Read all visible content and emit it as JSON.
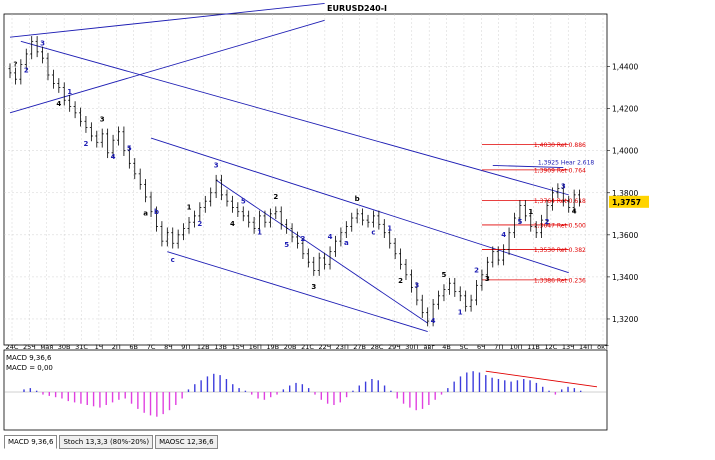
{
  "window": {
    "title": "EURUSD240-I"
  },
  "colors": {
    "wave": "#1e1eb4",
    "candle": "#000000",
    "fib": "#e00000",
    "macd_pos": "#3c3cdc",
    "macd_neg": "#e040e0",
    "grid": "#c8c8c8",
    "price_box": "#ffd400"
  },
  "chart_data": [
    {
      "type": "candlestick",
      "title": "EURUSD240-I",
      "ylim": [
        1.31,
        1.465
      ],
      "y_ticks": [
        "1,4400",
        "1,4200",
        "1,4000",
        "1,3800",
        "1,3600",
        "1,3400",
        "1,3200"
      ],
      "y_tick_values": [
        1.44,
        1.42,
        1.4,
        1.38,
        1.36,
        1.34,
        1.32
      ],
      "current_price": "1,3757",
      "current_price_value": 1.3757,
      "x_ticks": [
        "24С",
        "25Ч",
        "мая",
        "30В",
        "31С",
        "1Ч",
        "2П",
        "6В",
        "7С",
        "8Ч",
        "9П",
        "12В",
        "13В",
        "15Ч",
        "16П",
        "19В",
        "20В",
        "21С",
        "22Ч",
        "23П",
        "27В",
        "28С",
        "29Ч",
        "30П",
        "авг",
        "4В",
        "5С",
        "6Ч",
        "7П",
        "10П",
        "11В",
        "12С",
        "13Ч",
        "14П",
        "окт"
      ],
      "fib_levels": [
        {
          "label": "1,4030 Ret 0.886",
          "value": 1.403
        },
        {
          "label": "1,3909 Ret 0.764",
          "value": 1.3909
        },
        {
          "label": "1,3764 Ret 0.618",
          "value": 1.3764
        },
        {
          "label": "1,3647 Ret 0.500",
          "value": 1.3647
        },
        {
          "label": "1,3530 Ret 0.382",
          "value": 1.353
        },
        {
          "label": "1,3386 Ret 0.236",
          "value": 1.3386
        }
      ],
      "extension": {
        "label": "1,3925 Hear 2.618",
        "value": 1.3925
      },
      "closes": [
        1.437,
        1.434,
        1.441,
        1.446,
        1.452,
        1.447,
        1.444,
        1.436,
        1.432,
        1.43,
        1.424,
        1.421,
        1.418,
        1.414,
        1.411,
        1.407,
        1.404,
        1.408,
        1.399,
        1.405,
        1.409,
        1.4,
        1.394,
        1.389,
        1.384,
        1.378,
        1.371,
        1.364,
        1.357,
        1.361,
        1.356,
        1.36,
        1.363,
        1.366,
        1.369,
        1.373,
        1.376,
        1.38,
        1.386,
        1.379,
        1.376,
        1.373,
        1.371,
        1.369,
        1.366,
        1.363,
        1.369,
        1.366,
        1.37,
        1.371,
        1.365,
        1.363,
        1.359,
        1.356,
        1.351,
        1.347,
        1.343,
        1.349,
        1.346,
        1.352,
        1.357,
        1.361,
        1.364,
        1.368,
        1.37,
        1.367,
        1.366,
        1.369,
        1.365,
        1.361,
        1.356,
        1.351,
        1.346,
        1.341,
        1.335,
        1.329,
        1.323,
        1.319,
        1.327,
        1.331,
        1.334,
        1.337,
        1.333,
        1.331,
        1.326,
        1.329,
        1.336,
        1.341,
        1.347,
        1.352,
        1.348,
        1.353,
        1.361,
        1.368,
        1.374,
        1.369,
        1.364,
        1.361,
        1.367,
        1.374,
        1.38,
        1.382,
        1.376,
        1.373,
        1.379,
        1.376
      ],
      "wave_labels": [
        "?",
        "2",
        "3",
        "4",
        "1",
        "2",
        "3",
        "4",
        "5",
        "a",
        "b",
        "c",
        "1",
        "2",
        "3",
        "4",
        "5",
        "1",
        "2",
        "5",
        "2",
        "3",
        "4",
        "a",
        "b",
        "c",
        "1",
        "2",
        "3",
        "4",
        "5",
        "1",
        "2",
        "3",
        "4",
        "5",
        "1",
        "2",
        "3",
        "4"
      ]
    },
    {
      "type": "histogram",
      "title": "MACD 9,36,6",
      "legend": [
        "MACD 9,36,6",
        "MACD = 0,00"
      ],
      "values": [
        0.2,
        0.3,
        0.1,
        -0.2,
        -0.3,
        -0.4,
        -0.5,
        -0.7,
        -0.8,
        -0.9,
        -1.0,
        -1.1,
        -1.2,
        -1.0,
        -0.8,
        -0.6,
        -0.5,
        -0.9,
        -1.3,
        -1.6,
        -1.8,
        -1.9,
        -1.7,
        -1.4,
        -1.0,
        -0.5,
        0.2,
        0.6,
        0.9,
        1.2,
        1.4,
        1.3,
        1.0,
        0.6,
        0.3,
        0.1,
        -0.2,
        -0.5,
        -0.6,
        -0.4,
        -0.2,
        0.2,
        0.5,
        0.7,
        0.6,
        0.3,
        -0.2,
        -0.6,
        -0.9,
        -1.0,
        -0.8,
        -0.4,
        0.1,
        0.5,
        0.8,
        1.0,
        0.9,
        0.5,
        0.1,
        -0.5,
        -0.9,
        -1.2,
        -1.4,
        -1.3,
        -1.0,
        -0.6,
        -0.2,
        0.3,
        0.8,
        1.2,
        1.5,
        1.6,
        1.5,
        1.3,
        1.1,
        1.0,
        0.9,
        0.8,
        0.9,
        1.0,
        0.9,
        0.7,
        0.4,
        0.1,
        -0.2,
        0.2,
        0.4,
        0.3,
        0.1
      ]
    }
  ],
  "indicator_tabs": [
    "MACD 9,36,6",
    "Stoch 13,3,3 (80%-20%)",
    "MAOSC 12,36,6"
  ]
}
